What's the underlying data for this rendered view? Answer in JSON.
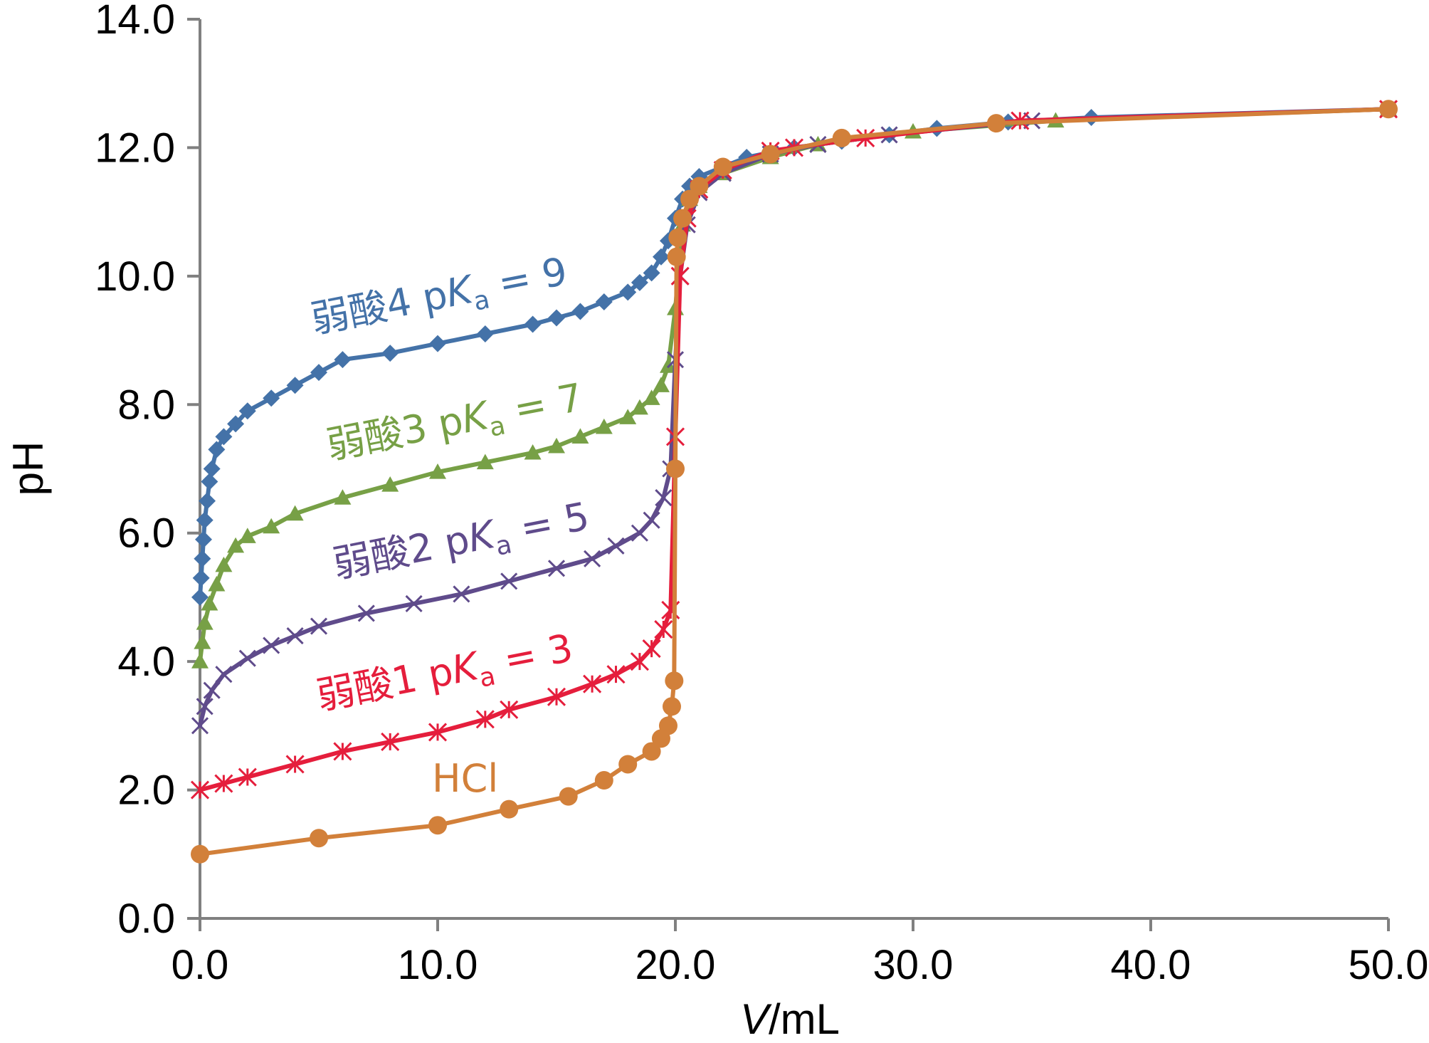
{
  "chart_data": {
    "type": "line",
    "title": "",
    "xlabel": "V/mL",
    "xlabel_italic": "V",
    "xlabel_unit": "/mL",
    "ylabel": "pH",
    "xlim": [
      0,
      50
    ],
    "ylim": [
      0,
      14
    ],
    "x_ticks": [
      0,
      10,
      20,
      30,
      40,
      50
    ],
    "y_ticks": [
      0,
      2,
      4,
      6,
      8,
      10,
      12,
      14
    ],
    "x_tick_labels": [
      "0.0",
      "10.0",
      "20.0",
      "30.0",
      "40.0",
      "50.0"
    ],
    "y_tick_labels": [
      "0.0",
      "2.0",
      "4.0",
      "6.0",
      "8.0",
      "10.0",
      "12.0",
      "14.0"
    ],
    "grid": false,
    "series": [
      {
        "name": "弱酸4 pKa = 9",
        "label_parts": {
          "prefix": "弱酸4 p",
          "italic": "K",
          "sub": "a",
          "suffix": " = 9"
        },
        "color": "#4472a8",
        "marker": "diamond",
        "points": [
          [
            0,
            5.0
          ],
          [
            0.05,
            5.3
          ],
          [
            0.1,
            5.6
          ],
          [
            0.15,
            5.9
          ],
          [
            0.2,
            6.2
          ],
          [
            0.3,
            6.5
          ],
          [
            0.4,
            6.8
          ],
          [
            0.5,
            7.0
          ],
          [
            0.7,
            7.3
          ],
          [
            1.0,
            7.5
          ],
          [
            1.5,
            7.7
          ],
          [
            2.0,
            7.9
          ],
          [
            3.0,
            8.1
          ],
          [
            4.0,
            8.3
          ],
          [
            5.0,
            8.5
          ],
          [
            6.0,
            8.7
          ],
          [
            8.0,
            8.8
          ],
          [
            10.0,
            8.95
          ],
          [
            12.0,
            9.1
          ],
          [
            14.0,
            9.25
          ],
          [
            15.0,
            9.35
          ],
          [
            16.0,
            9.45
          ],
          [
            17.0,
            9.6
          ],
          [
            18.0,
            9.75
          ],
          [
            18.5,
            9.9
          ],
          [
            19.0,
            10.05
          ],
          [
            19.4,
            10.3
          ],
          [
            19.7,
            10.55
          ],
          [
            20.0,
            10.9
          ],
          [
            20.3,
            11.2
          ],
          [
            20.6,
            11.4
          ],
          [
            21.0,
            11.55
          ],
          [
            22.0,
            11.7
          ],
          [
            23.0,
            11.85
          ],
          [
            25.0,
            12.0
          ],
          [
            27.0,
            12.1
          ],
          [
            29.0,
            12.2
          ],
          [
            31.0,
            12.3
          ],
          [
            34.0,
            12.4
          ],
          [
            37.5,
            12.47
          ],
          [
            50.0,
            12.6
          ]
        ]
      },
      {
        "name": "弱酸3 pKa = 7",
        "label_parts": {
          "prefix": "弱酸3 p",
          "italic": "K",
          "sub": "a",
          "suffix": " = 7"
        },
        "color": "#77a046",
        "marker": "triangle",
        "points": [
          [
            0,
            4.0
          ],
          [
            0.1,
            4.3
          ],
          [
            0.2,
            4.6
          ],
          [
            0.4,
            4.9
          ],
          [
            0.7,
            5.2
          ],
          [
            1.0,
            5.5
          ],
          [
            1.5,
            5.8
          ],
          [
            2.0,
            5.95
          ],
          [
            3.0,
            6.1
          ],
          [
            4.0,
            6.3
          ],
          [
            6.0,
            6.55
          ],
          [
            8.0,
            6.75
          ],
          [
            10.0,
            6.95
          ],
          [
            12.0,
            7.1
          ],
          [
            14.0,
            7.25
          ],
          [
            15.0,
            7.35
          ],
          [
            16.0,
            7.5
          ],
          [
            17.0,
            7.65
          ],
          [
            18.0,
            7.8
          ],
          [
            18.5,
            7.95
          ],
          [
            19.0,
            8.1
          ],
          [
            19.4,
            8.3
          ],
          [
            19.7,
            8.6
          ],
          [
            20.0,
            9.5
          ],
          [
            20.3,
            10.8
          ],
          [
            20.6,
            11.2
          ],
          [
            21.0,
            11.4
          ],
          [
            22.0,
            11.6
          ],
          [
            24.0,
            11.85
          ],
          [
            26.0,
            12.05
          ],
          [
            30.0,
            12.25
          ],
          [
            36.0,
            12.42
          ],
          [
            50.0,
            12.6
          ]
        ]
      },
      {
        "name": "弱酸2 pKa = 5",
        "label_parts": {
          "prefix": "弱酸2 p",
          "italic": "K",
          "sub": "a",
          "suffix": " = 5"
        },
        "color": "#5f4b8b",
        "marker": "x",
        "points": [
          [
            0,
            3.0
          ],
          [
            0.2,
            3.3
          ],
          [
            0.5,
            3.55
          ],
          [
            1.0,
            3.8
          ],
          [
            2.0,
            4.05
          ],
          [
            3.0,
            4.25
          ],
          [
            4.0,
            4.4
          ],
          [
            5.0,
            4.55
          ],
          [
            7.0,
            4.75
          ],
          [
            9.0,
            4.9
          ],
          [
            11.0,
            5.05
          ],
          [
            13.0,
            5.25
          ],
          [
            15.0,
            5.45
          ],
          [
            16.5,
            5.6
          ],
          [
            17.5,
            5.8
          ],
          [
            18.5,
            6.0
          ],
          [
            19.0,
            6.2
          ],
          [
            19.5,
            6.55
          ],
          [
            19.8,
            7.0
          ],
          [
            20.0,
            8.7
          ],
          [
            20.2,
            10.0
          ],
          [
            20.5,
            10.8
          ],
          [
            21.0,
            11.3
          ],
          [
            22.0,
            11.6
          ],
          [
            24.0,
            11.9
          ],
          [
            26.0,
            12.05
          ],
          [
            29.0,
            12.2
          ],
          [
            35.0,
            12.42
          ],
          [
            50.0,
            12.6
          ]
        ]
      },
      {
        "name": "弱酸1 pKa = 3",
        "label_parts": {
          "prefix": "弱酸1 p",
          "italic": "K",
          "sub": "a",
          "suffix": " = 3"
        },
        "color": "#e51e3c",
        "marker": "asterisk",
        "points": [
          [
            0,
            2.0
          ],
          [
            1.0,
            2.1
          ],
          [
            2.0,
            2.2
          ],
          [
            4.0,
            2.4
          ],
          [
            6.0,
            2.6
          ],
          [
            8.0,
            2.75
          ],
          [
            10.0,
            2.9
          ],
          [
            12.0,
            3.1
          ],
          [
            13.0,
            3.25
          ],
          [
            15.0,
            3.45
          ],
          [
            16.5,
            3.65
          ],
          [
            17.5,
            3.8
          ],
          [
            18.5,
            4.0
          ],
          [
            19.0,
            4.2
          ],
          [
            19.5,
            4.5
          ],
          [
            19.8,
            4.8
          ],
          [
            20.0,
            7.5
          ],
          [
            20.2,
            10.0
          ],
          [
            20.5,
            10.9
          ],
          [
            21.0,
            11.35
          ],
          [
            22.0,
            11.65
          ],
          [
            24.0,
            11.95
          ],
          [
            25.0,
            12.0
          ],
          [
            28.0,
            12.15
          ],
          [
            34.5,
            12.42
          ],
          [
            50.0,
            12.6
          ]
        ]
      },
      {
        "name": "HCl",
        "label_parts": {
          "prefix": "HCl",
          "italic": "",
          "sub": "",
          "suffix": ""
        },
        "color": "#d2803a",
        "marker": "circle",
        "points": [
          [
            0,
            1.0
          ],
          [
            5.0,
            1.25
          ],
          [
            10.0,
            1.45
          ],
          [
            13.0,
            1.7
          ],
          [
            15.5,
            1.9
          ],
          [
            17.0,
            2.15
          ],
          [
            18.0,
            2.4
          ],
          [
            19.0,
            2.6
          ],
          [
            19.4,
            2.8
          ],
          [
            19.7,
            3.0
          ],
          [
            19.85,
            3.3
          ],
          [
            19.95,
            3.7
          ],
          [
            20.0,
            7.0
          ],
          [
            20.05,
            10.3
          ],
          [
            20.1,
            10.6
          ],
          [
            20.3,
            10.9
          ],
          [
            20.6,
            11.2
          ],
          [
            21.0,
            11.4
          ],
          [
            22.0,
            11.7
          ],
          [
            24.0,
            11.9
          ],
          [
            27.0,
            12.15
          ],
          [
            33.5,
            12.38
          ],
          [
            50.0,
            12.6
          ]
        ]
      }
    ]
  }
}
